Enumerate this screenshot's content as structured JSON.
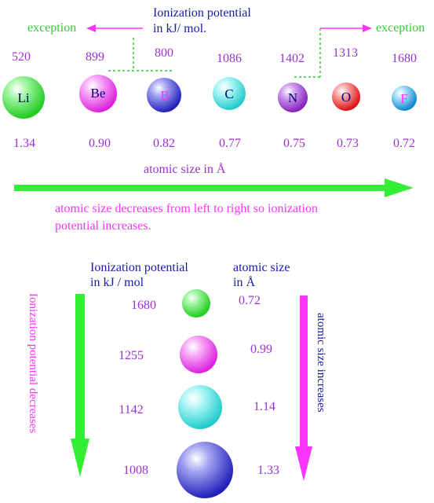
{
  "top": {
    "ie_label_line1": "Ionization potential",
    "ie_label_line2": "in kJ/ mol.",
    "exception_left": "exception",
    "exception_right": "exception",
    "atoms": [
      {
        "symbol": "Li",
        "ie": "520",
        "radius": "1.34",
        "color": "#33dd33",
        "symbol_color": "#000080"
      },
      {
        "symbol": "Be",
        "ie": "899",
        "radius": "0.90",
        "color": "#ee33ee",
        "symbol_color": "#000080"
      },
      {
        "symbol": "B",
        "ie": "800",
        "radius": "0.82",
        "color": "#3333cc",
        "symbol_color": "#ff33ff"
      },
      {
        "symbol": "C",
        "ie": "1086",
        "radius": "0.77",
        "color": "#33dddd",
        "symbol_color": "#000080"
      },
      {
        "symbol": "N",
        "ie": "1402",
        "radius": "0.75",
        "color": "#9933cc",
        "symbol_color": "#ffffff"
      },
      {
        "symbol": "O",
        "ie": "1313",
        "radius": "0.73",
        "color": "#ee2222",
        "symbol_color": "#000080"
      },
      {
        "symbol": "F",
        "ie": "1680",
        "radius": "0.72",
        "color": "#2299dd",
        "symbol_color": "#ff33ff"
      }
    ],
    "atomic_size_label": "atomic size in Å",
    "caption_line1": "atomic size decreases from left to right so ionization",
    "caption_line2": "potential increases."
  },
  "bottom": {
    "ie_label_line1": "Ionization potential",
    "ie_label_line2": "in kJ / mol",
    "size_label_line1": "atomic size",
    "size_label_line2": "in Å",
    "left_arrow_label": "Ionization potential decreases",
    "right_arrow_label": "atomic size increases",
    "rows": [
      {
        "ie": "1680",
        "size": "0.72",
        "color": "#33dd33"
      },
      {
        "ie": "1255",
        "size": "0.99",
        "color": "#ee33ee"
      },
      {
        "ie": "1142",
        "size": "1.14",
        "color": "#33dddd"
      },
      {
        "ie": "1008",
        "size": "1.33",
        "color": "#3333cc"
      }
    ]
  },
  "colors": {
    "purple_text": "#9933cc",
    "blue_text": "#1a1aaa",
    "green": "#33ee33",
    "magenta": "#ff33ff"
  }
}
